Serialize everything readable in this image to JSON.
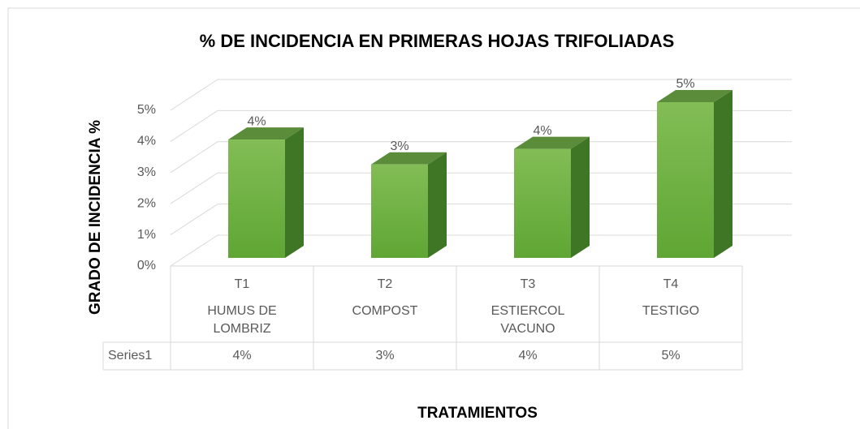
{
  "chart_data": {
    "type": "bar3d",
    "title": "% DE INCIDENCIA EN PRIMERAS HOJAS TRIFOLIADAS",
    "y_label": "GRADO DE INCIDENCIA %",
    "x_label": "TRATAMIENTOS",
    "categories": [
      "T1",
      "T2",
      "T3",
      "T4"
    ],
    "category_descriptions": [
      "HUMUS DE LOMBRIZ",
      "COMPOST",
      "ESTIERCOL VACUNO",
      "TESTIGO"
    ],
    "series": [
      {
        "name": "Series1",
        "color": "#70ad47",
        "values": [
          3.8,
          3.0,
          3.5,
          5.0
        ],
        "value_labels": [
          "4%",
          "3%",
          "4%",
          "5%"
        ]
      }
    ],
    "ylim": [
      0,
      5
    ],
    "yticks": [
      {
        "value": 0,
        "label": "0%"
      },
      {
        "value": 1,
        "label": "1%"
      },
      {
        "value": 2,
        "label": "2%"
      },
      {
        "value": 3,
        "label": "3%"
      },
      {
        "value": 4,
        "label": "4%"
      },
      {
        "value": 5,
        "label": "5%"
      }
    ],
    "grid": true,
    "data_table": true
  }
}
